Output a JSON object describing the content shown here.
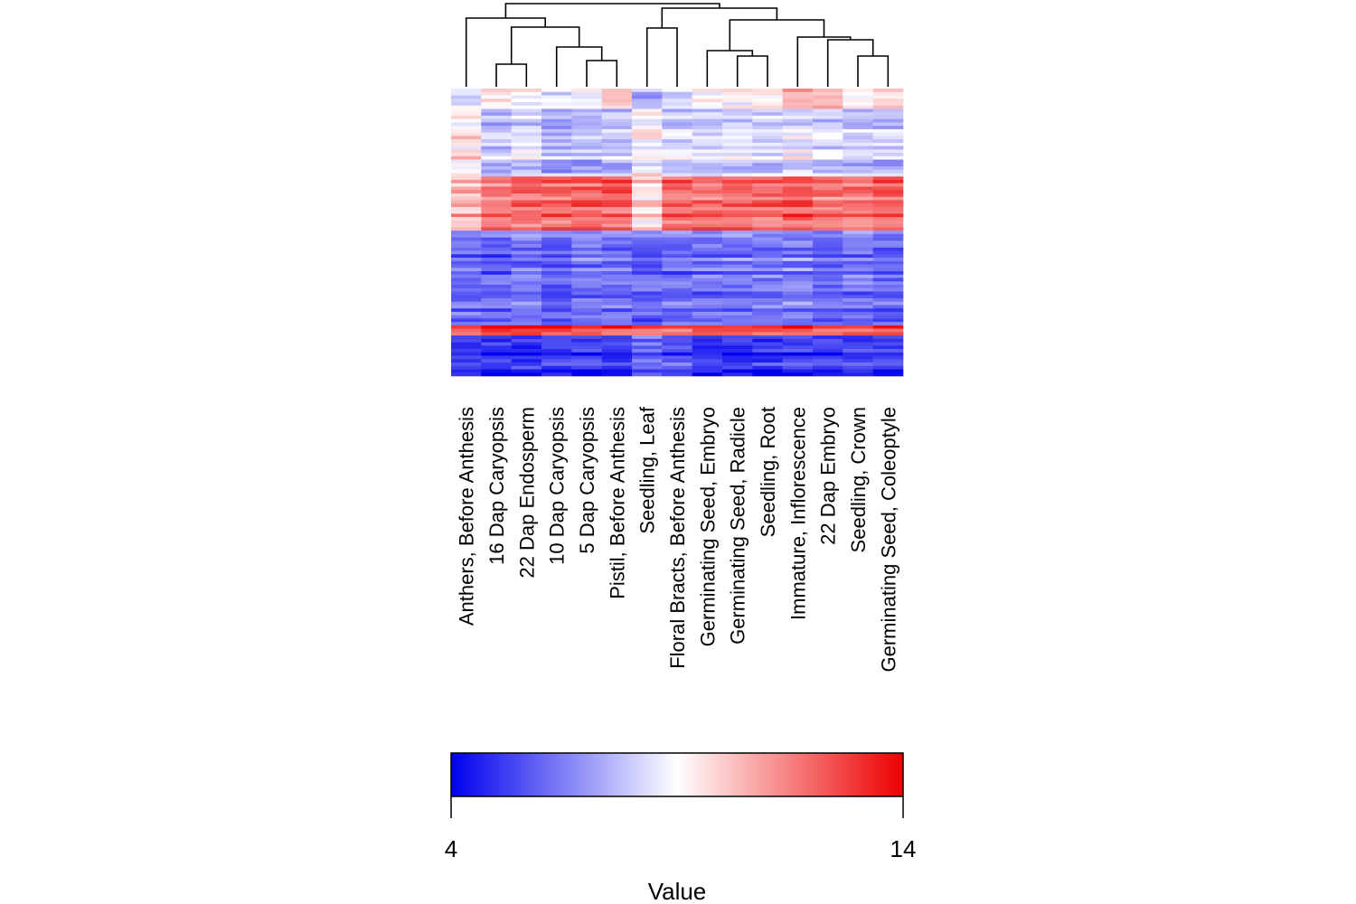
{
  "chart_data": {
    "type": "heatmap",
    "title": "",
    "columns": [
      "Anthers, Before Anthesis",
      "16 Dap Caryopsis",
      "22 Dap Endosperm",
      "10 Dap Caryopsis",
      "5 Dap Caryopsis",
      "Pistil, Before Anthesis",
      "Seedling, Leaf",
      "Floral Bracts, Before Anthesis",
      "Germinating Seed, Embryo",
      "Germinating Seed, Radicle",
      "Seedling, Root",
      "Immature, Inflorescence",
      "22 Dap Embryo",
      "Seedling, Crown",
      "Germinating Seed, Coleoptyle"
    ],
    "column_dendrogram": true,
    "row_labels_shown": false,
    "color_scale": {
      "title": "Value",
      "min": 4,
      "max": 14,
      "ticks": [
        "4",
        "14"
      ],
      "low_color": "#0000ee",
      "mid_color": "#ffffff",
      "high_color": "#ee0000"
    },
    "row_blocks": [
      {
        "band": "upper",
        "rows": 6,
        "values": [
          8.6,
          9.6,
          9.0,
          8.6,
          9.0,
          10.4,
          7.5,
          8.4,
          9.0,
          9.3,
          9.6,
          10.8,
          10.6,
          9.0,
          10.4
        ]
      },
      {
        "band": "middle",
        "rows": 20,
        "values": [
          9.6,
          7.8,
          8.2,
          7.4,
          7.6,
          8.0,
          9.2,
          8.2,
          8.2,
          8.4,
          8.3,
          8.6,
          8.3,
          8.0,
          7.8
        ]
      },
      {
        "band": "lower-middle",
        "rows": 16,
        "values": [
          10.4,
          11.4,
          11.8,
          11.8,
          12.0,
          12.0,
          9.6,
          11.8,
          11.8,
          11.8,
          11.8,
          12.2,
          11.8,
          11.6,
          12.0
        ]
      },
      {
        "band": "lower",
        "rows": 28,
        "values": [
          6.3,
          6.0,
          6.5,
          6.0,
          6.3,
          6.4,
          6.0,
          6.2,
          6.3,
          6.5,
          6.5,
          6.6,
          6.3,
          6.4,
          6.1
        ]
      },
      {
        "band": "high strip",
        "rows": 3,
        "values": [
          12.8,
          13.2,
          13.2,
          13.0,
          12.8,
          12.8,
          12.0,
          12.0,
          12.5,
          12.6,
          12.8,
          12.8,
          12.6,
          12.6,
          13.0
        ]
      },
      {
        "band": "bottom",
        "rows": 12,
        "values": [
          5.2,
          5.0,
          5.0,
          5.0,
          5.0,
          5.0,
          6.0,
          5.6,
          5.0,
          5.0,
          5.0,
          5.0,
          5.0,
          5.0,
          5.0
        ]
      }
    ]
  }
}
